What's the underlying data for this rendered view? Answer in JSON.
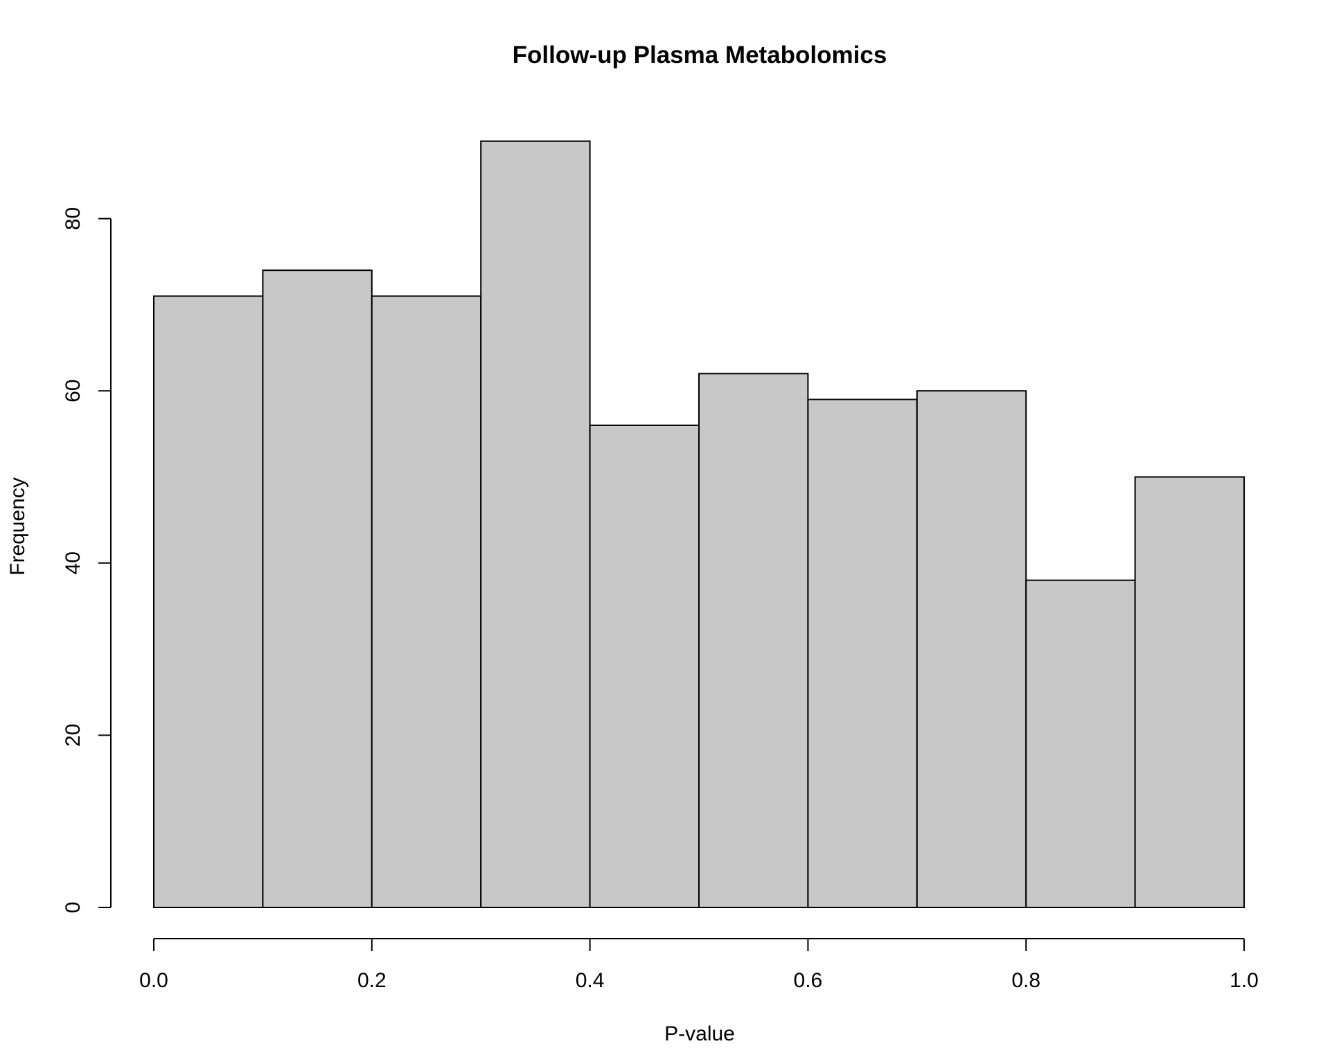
{
  "chart_data": {
    "type": "bar",
    "subtype": "histogram",
    "title": "Follow-up Plasma Metabolomics",
    "xlabel": "P-value",
    "ylabel": "Frequency",
    "bins": [
      {
        "start": 0.0,
        "end": 0.1,
        "count": 71
      },
      {
        "start": 0.1,
        "end": 0.2,
        "count": 74
      },
      {
        "start": 0.2,
        "end": 0.3,
        "count": 71
      },
      {
        "start": 0.3,
        "end": 0.4,
        "count": 89
      },
      {
        "start": 0.4,
        "end": 0.5,
        "count": 56
      },
      {
        "start": 0.5,
        "end": 0.6,
        "count": 62
      },
      {
        "start": 0.6,
        "end": 0.7,
        "count": 59
      },
      {
        "start": 0.7,
        "end": 0.8,
        "count": 60
      },
      {
        "start": 0.8,
        "end": 0.9,
        "count": 38
      },
      {
        "start": 0.9,
        "end": 1.0,
        "count": 50
      }
    ],
    "xlim": [
      0,
      1
    ],
    "ylim": [
      0,
      89
    ],
    "x_ticks": [
      "0.0",
      "0.2",
      "0.4",
      "0.6",
      "0.8",
      "1.0"
    ],
    "y_ticks": [
      "0",
      "20",
      "40",
      "60",
      "80"
    ],
    "grid": false,
    "bar_color": "#c8c8c8",
    "edge_color": "#000000"
  }
}
